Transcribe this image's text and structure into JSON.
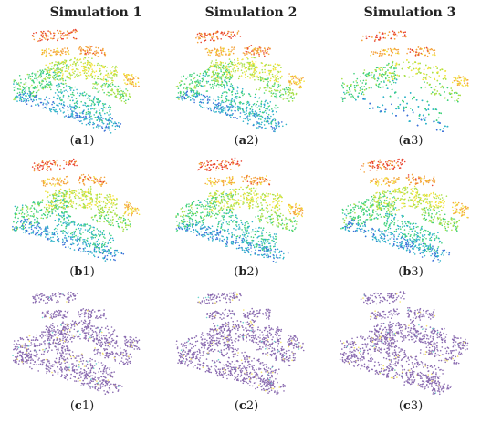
{
  "columns": [
    "Simulation 1",
    "Simulation 2",
    "Simulation 3"
  ],
  "captions": {
    "a1": [
      "a",
      "1"
    ],
    "a2": [
      "a",
      "2"
    ],
    "a3": [
      "a",
      "3"
    ],
    "b1": [
      "b",
      "1"
    ],
    "b2": [
      "b",
      "2"
    ],
    "b3": [
      "b",
      "3"
    ],
    "c1": [
      "c",
      "1"
    ],
    "c2": [
      "c",
      "2"
    ],
    "c3": [
      "c",
      "3"
    ]
  },
  "colors": {
    "elevation_scale": [
      "#3a6fd8",
      "#2fb3c9",
      "#3fd17a",
      "#a8e04a",
      "#f2e33b",
      "#f4a23a",
      "#e8432e"
    ],
    "class_main": "#8a6bb0",
    "class_alt_yellow": "#f3e36a",
    "class_alt_cyan": "#6fd6cf"
  }
}
